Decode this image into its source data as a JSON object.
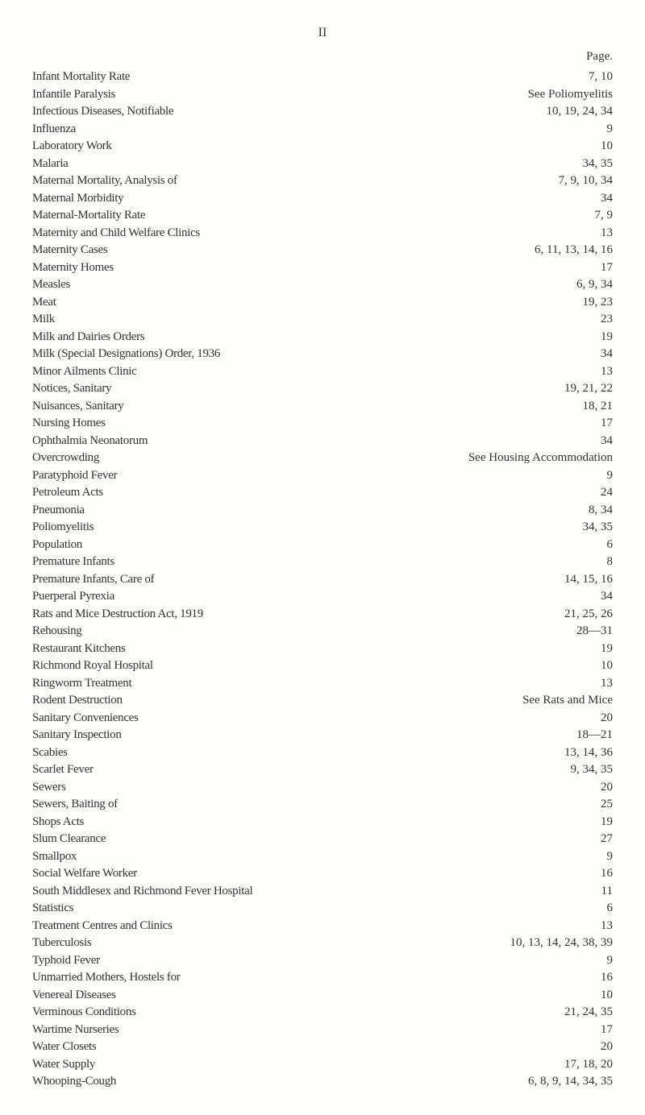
{
  "page_number": "II",
  "header_label": "Page.",
  "entries": [
    {
      "label": "Infant Mortality Rate",
      "page": "7, 10"
    },
    {
      "label": "Infantile Paralysis",
      "page": "See Poliomyelitis"
    },
    {
      "label": "Infectious Diseases, Notifiable",
      "page": "10, 19, 24, 34"
    },
    {
      "label": "Influenza",
      "page": "9"
    },
    {
      "label": "Laboratory Work",
      "page": "10"
    },
    {
      "label": "Malaria",
      "page": "34, 35"
    },
    {
      "label": "Maternal Mortality, Analysis of",
      "page": "7, 9, 10, 34"
    },
    {
      "label": "Maternal Morbidity",
      "page": "34"
    },
    {
      "label": "Maternal-Mortality Rate",
      "page": "7, 9"
    },
    {
      "label": "Maternity and Child Welfare Clinics",
      "page": "13"
    },
    {
      "label": "Maternity Cases",
      "page": "6, 11, 13, 14, 16"
    },
    {
      "label": "Maternity Homes",
      "page": "17"
    },
    {
      "label": "Measles",
      "page": "6, 9, 34"
    },
    {
      "label": "Meat",
      "page": "19, 23"
    },
    {
      "label": "Milk",
      "page": "23"
    },
    {
      "label": "Milk and Dairies Orders",
      "page": "19"
    },
    {
      "label": "Milk (Special Designations) Order, 1936",
      "page": "34"
    },
    {
      "label": "Minor Ailments Clinic",
      "page": "13"
    },
    {
      "label": "Notices, Sanitary",
      "page": "19, 21, 22"
    },
    {
      "label": "Nuisances, Sanitary",
      "page": "18, 21"
    },
    {
      "label": "Nursing Homes",
      "page": "17"
    },
    {
      "label": "Ophthalmia Neonatorum",
      "page": "34"
    },
    {
      "label": "Overcrowding",
      "page": "See Housing Accommodation"
    },
    {
      "label": "Paratyphoid Fever",
      "page": "9"
    },
    {
      "label": "Petroleum Acts",
      "page": "24"
    },
    {
      "label": "Pneumonia",
      "page": "8, 34"
    },
    {
      "label": "Poliomyelitis",
      "page": "34, 35"
    },
    {
      "label": "Population",
      "page": "6"
    },
    {
      "label": "Premature Infants",
      "page": "8"
    },
    {
      "label": "Premature Infants, Care of",
      "page": "14, 15, 16"
    },
    {
      "label": "Puerperal Pyrexia",
      "page": "34"
    },
    {
      "label": "Rats and Mice Destruction Act, 1919",
      "page": "21, 25, 26"
    },
    {
      "label": "Rehousing",
      "page": "28—31"
    },
    {
      "label": "Restaurant Kitchens",
      "page": "19"
    },
    {
      "label": "Richmond Royal Hospital",
      "page": "10"
    },
    {
      "label": "Ringworm Treatment",
      "page": "13"
    },
    {
      "label": "Rodent Destruction",
      "page": "See Rats and Mice"
    },
    {
      "label": "Sanitary Conveniences",
      "page": "20"
    },
    {
      "label": "Sanitary Inspection",
      "page": "18—21"
    },
    {
      "label": "Scabies",
      "page": "13, 14, 36"
    },
    {
      "label": "Scarlet Fever",
      "page": "9, 34, 35"
    },
    {
      "label": "Sewers",
      "page": "20"
    },
    {
      "label": "Sewers, Baiting of",
      "page": "25"
    },
    {
      "label": "Shops Acts",
      "page": "19"
    },
    {
      "label": "Slum Clearance",
      "page": "27"
    },
    {
      "label": "Smallpox",
      "page": "9"
    },
    {
      "label": "Social Welfare Worker",
      "page": "16"
    },
    {
      "label": "South Middlesex and Richmond Fever Hospital",
      "page": "11"
    },
    {
      "label": "Statistics",
      "page": "6"
    },
    {
      "label": "Treatment Centres and Clinics",
      "page": "13"
    },
    {
      "label": "Tuberculosis",
      "page": "10, 13, 14, 24, 38, 39"
    },
    {
      "label": "Typhoid Fever",
      "page": "9"
    },
    {
      "label": "Unmarried Mothers, Hostels for",
      "page": "16"
    },
    {
      "label": "Venereal Diseases",
      "page": "10"
    },
    {
      "label": "Verminous Conditions",
      "page": "21, 24, 35"
    },
    {
      "label": "Wartime Nurseries",
      "page": "17"
    },
    {
      "label": "Water Closets",
      "page": "20"
    },
    {
      "label": "Water Supply",
      "page": "17, 18, 20"
    },
    {
      "label": "Whooping-Cough",
      "page": "6, 8, 9, 14, 34, 35"
    }
  ]
}
